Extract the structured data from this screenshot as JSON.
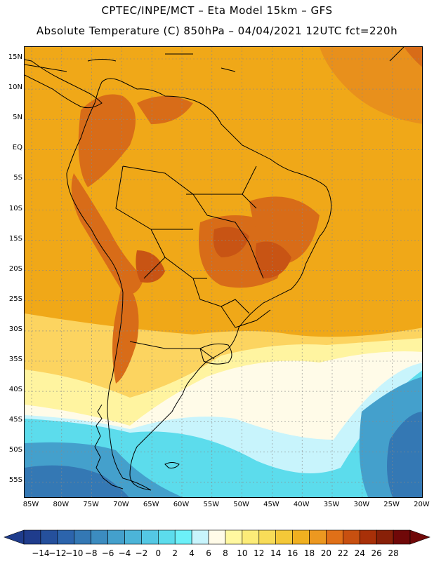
{
  "header": {
    "line1": "CPTEC/INPE/MCT –  Eta Model 15km – GFS",
    "line2": "Absolute Temperature (C) 850hPa – 04/04/2021 12UTC fct=220h"
  },
  "axes": {
    "lat_labels": [
      "15N",
      "10N",
      "5N",
      "EQ",
      "5S",
      "10S",
      "15S",
      "20S",
      "25S",
      "30S",
      "35S",
      "40S",
      "45S",
      "50S",
      "55S"
    ],
    "lon_labels": [
      "85W",
      "80W",
      "75W",
      "70W",
      "65W",
      "60W",
      "55W",
      "50W",
      "45W",
      "40W",
      "35W",
      "30W",
      "25W",
      "20W"
    ],
    "grid": true
  },
  "colorbar": {
    "labels": [
      "-14",
      "-12",
      "-10",
      "-8",
      "-6",
      "-4",
      "-2",
      "0",
      "2",
      "4",
      "6",
      "8",
      "10",
      "12",
      "14",
      "16",
      "18",
      "20",
      "22",
      "24",
      "26",
      "28"
    ],
    "colors": [
      "#1f3c8c",
      "#25509c",
      "#2c64ac",
      "#3478b4",
      "#3c8cc0",
      "#44a0cc",
      "#4cb4d8",
      "#54c8e4",
      "#5cdcec",
      "#6cf0f8",
      "#c8f4fc",
      "#fffbe8",
      "#fff8a0",
      "#fcec78",
      "#f8dc58",
      "#f4c838",
      "#f0b020",
      "#ec9820",
      "#e07018",
      "#c85010",
      "#a83008",
      "#882008",
      "#700808"
    ]
  },
  "map_colors": {
    "ocean_warm": "#f0a818",
    "ocean_hot": "#e8901c",
    "land_hot": "#d86c18",
    "land_very_hot": "#c85414",
    "cool_band": "#fcd460",
    "cooler": "#fff4a0",
    "cold": "#fffbe8",
    "colder": "#c8f4fc",
    "cyan": "#5cdcec",
    "blue": "#44a0cc",
    "deep_blue": "#3478b4"
  }
}
